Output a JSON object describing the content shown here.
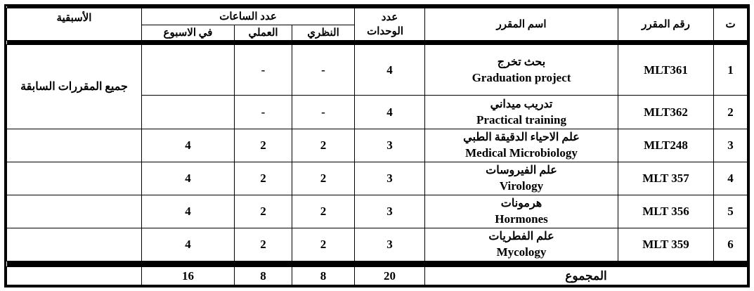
{
  "headers": {
    "index": "ت",
    "code": "رقم المقرر",
    "name": "اسم المقرر",
    "units": "عدد الوحدات",
    "hours": "عدد الساعات",
    "theory": "النظري",
    "practical": "العملي",
    "weekly": "في الاسبوع",
    "prereq": "الأسبقية"
  },
  "rows": [
    {
      "index": "1",
      "code": "MLT361",
      "name_ar": "بحث تخرج",
      "name_en": "Graduation project",
      "units": "4",
      "theory": "-",
      "practical": "-",
      "weekly": ""
    },
    {
      "index": "2",
      "code": "MLT362",
      "name_ar": "تدريب ميداني",
      "name_en": "Practical training",
      "units": "4",
      "theory": "-",
      "practical": "-",
      "weekly": ""
    },
    {
      "index": "3",
      "code": "MLT248",
      "name_ar": "علم الاحياء الدقيقة الطبي",
      "name_en": "Medical Microbiology",
      "units": "3",
      "theory": "2",
      "practical": "2",
      "weekly": "4"
    },
    {
      "index": "4",
      "code": "MLT 357",
      "name_ar": "علم الفيروسات",
      "name_en": "Virology",
      "units": "3",
      "theory": "2",
      "practical": "2",
      "weekly": "4"
    },
    {
      "index": "5",
      "code": "MLT 356",
      "name_ar": "هرمونات",
      "name_en": "Hormones",
      "units": "3",
      "theory": "2",
      "practical": "2",
      "weekly": "4"
    },
    {
      "index": "6",
      "code": "MLT 359",
      "name_ar": "علم الفطريات",
      "name_en": "Mycology",
      "units": "3",
      "theory": "2",
      "practical": "2",
      "weekly": "4"
    }
  ],
  "prereq_rows_1_2": "جميع المقررات السابقة",
  "total": {
    "label": "المجموع",
    "units": "20",
    "theory": "8",
    "practical": "8",
    "weekly": "16"
  }
}
